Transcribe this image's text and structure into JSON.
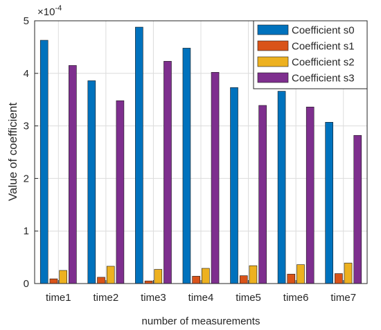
{
  "chart_data": {
    "type": "bar",
    "title": "",
    "xlabel": "number of measurements",
    "ylabel": "Value of coefficient",
    "exponent_label": "×10",
    "exponent_power": "-4",
    "categories": [
      "time1",
      "time2",
      "time3",
      "time4",
      "time5",
      "time6",
      "time7"
    ],
    "ylim": [
      0,
      5
    ],
    "yticks": [
      0,
      1,
      2,
      3,
      4,
      5
    ],
    "grid": true,
    "legend_position": "top-right",
    "series": [
      {
        "name": "Coefficient s0",
        "color": "#0072BD",
        "values": [
          4.63,
          3.86,
          4.88,
          4.48,
          3.73,
          3.66,
          3.07
        ]
      },
      {
        "name": "Coefficient s1",
        "color": "#D95319",
        "values": [
          0.09,
          0.12,
          0.05,
          0.14,
          0.15,
          0.18,
          0.19
        ]
      },
      {
        "name": "Coefficient s2",
        "color": "#EDB120",
        "values": [
          0.25,
          0.33,
          0.27,
          0.29,
          0.34,
          0.36,
          0.39
        ]
      },
      {
        "name": "Coefficient s3",
        "color": "#7E2F8E",
        "values": [
          4.15,
          3.48,
          4.23,
          4.02,
          3.39,
          3.36,
          2.82
        ]
      }
    ]
  }
}
